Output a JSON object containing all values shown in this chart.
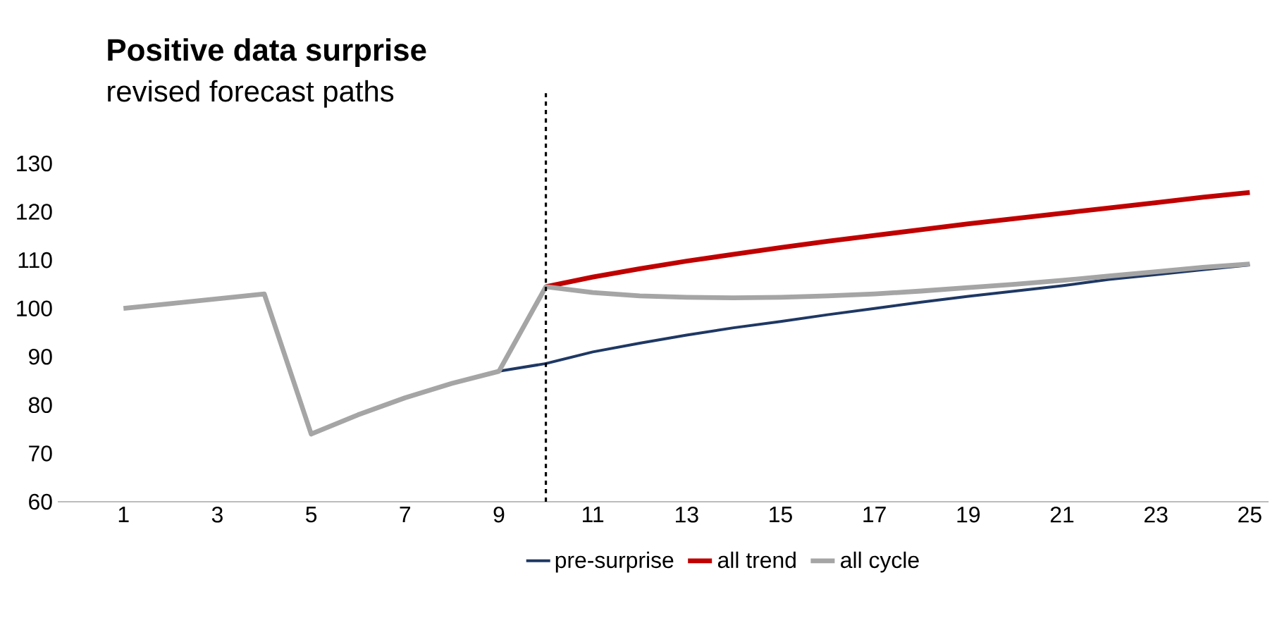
{
  "chart_data": {
    "type": "line",
    "title": "Positive data surprise",
    "subtitle": "revised forecast paths",
    "x": [
      1,
      2,
      3,
      4,
      5,
      6,
      7,
      8,
      9,
      10,
      11,
      12,
      13,
      14,
      15,
      16,
      17,
      18,
      19,
      20,
      21,
      22,
      23,
      24,
      25
    ],
    "xlim": [
      -0.4,
      25.4
    ],
    "xticks": [
      1,
      3,
      5,
      7,
      9,
      11,
      13,
      15,
      17,
      19,
      21,
      23,
      25
    ],
    "ylim": [
      60,
      130
    ],
    "yticks": [
      60,
      70,
      80,
      90,
      100,
      110,
      120,
      130
    ],
    "series": [
      {
        "name": "pre-surprise",
        "color": "#1f3864",
        "values": [
          null,
          null,
          null,
          null,
          null,
          null,
          null,
          null,
          87,
          88.6,
          91,
          92.8,
          94.5,
          96,
          97.3,
          98.7,
          100,
          101.3,
          102.5,
          103.6,
          104.7,
          106,
          107,
          108,
          109
        ]
      },
      {
        "name": "all trend",
        "color": "#c00000",
        "values": [
          null,
          null,
          null,
          null,
          null,
          null,
          null,
          null,
          null,
          104.5,
          106.5,
          108.2,
          109.8,
          111.2,
          112.6,
          113.9,
          115.1,
          116.3,
          117.5,
          118.6,
          119.7,
          120.8,
          121.9,
          123,
          124
        ]
      },
      {
        "name": "all cycle",
        "color": "#a5a5a5",
        "values": [
          100,
          101,
          102,
          103,
          74,
          78,
          81.5,
          84.5,
          87,
          104.5,
          103.3,
          102.6,
          102.3,
          102.2,
          102.3,
          102.6,
          103,
          103.6,
          104.3,
          105,
          105.8,
          106.7,
          107.6,
          108.5,
          109.2
        ]
      }
    ],
    "ref_lines": [
      {
        "axis": "x",
        "value": 10,
        "color": "#000000",
        "line_style": "dashed"
      }
    ],
    "legend": "bottom",
    "grid": false
  }
}
